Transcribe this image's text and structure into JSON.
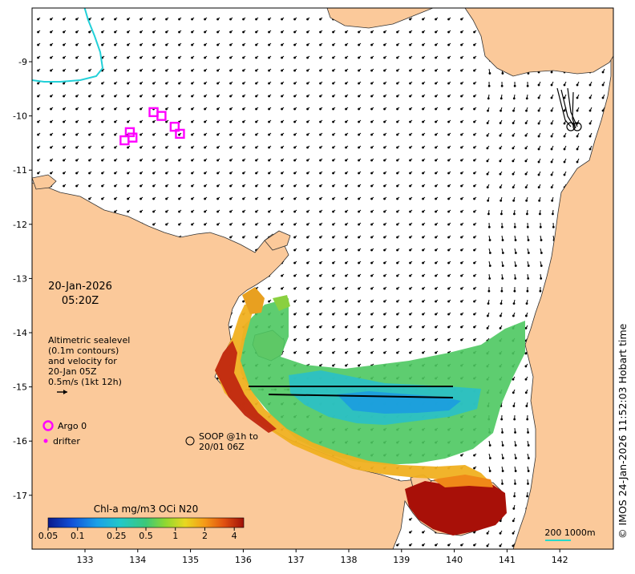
{
  "map": {
    "date": "20-Jan-2026",
    "time": "05:20Z",
    "x_axis_ticks": [
      "133",
      "134",
      "135",
      "136",
      "137",
      "138",
      "139",
      "140",
      "141",
      "142"
    ],
    "y_axis_ticks": [
      "-9",
      "-10",
      "-11",
      "-12",
      "-13",
      "-14",
      "-15",
      "-16",
      "-17"
    ],
    "copyright": "© IMOS 24-Jan-2026 11:52:03 Hobart time",
    "scale_label": "200  1000m",
    "colors": {
      "land": "#fbc99a",
      "sea": "#ffffff",
      "argo": "#ff00ff",
      "scale_line": "#26d9c9"
    }
  },
  "legend": {
    "altimetry_lines": [
      "Altimetric sealevel",
      "(0.1m contours)",
      "and velocity for",
      "20-Jan 05Z",
      "0.5m/s (1kt 12h)"
    ],
    "argo_label": "Argo 0",
    "drifter_label": "drifter",
    "soop_lines": [
      "SOOP @1h to",
      "20/01 06Z"
    ]
  },
  "colorbar": {
    "title": "Chl-a mg/m3 OCi N20",
    "ticks": [
      "0.05",
      "0.1",
      "0.25",
      "0.5",
      "1",
      "2",
      "4"
    ],
    "stops": [
      "#0a1a8c",
      "#1150d8",
      "#1aa0e8",
      "#22c8c8",
      "#3cc878",
      "#90d830",
      "#e8d820",
      "#f59a18",
      "#e05010",
      "#a01008"
    ]
  },
  "argo_floats": [
    {
      "lon": 133.75,
      "lat": -10.45
    },
    {
      "lon": 133.85,
      "lat": -10.3
    },
    {
      "lon": 133.9,
      "lat": -10.4
    },
    {
      "lon": 134.3,
      "lat": -9.93
    },
    {
      "lon": 134.45,
      "lat": -10.0
    },
    {
      "lon": 134.7,
      "lat": -10.2
    },
    {
      "lon": 134.8,
      "lat": -10.33
    }
  ]
}
